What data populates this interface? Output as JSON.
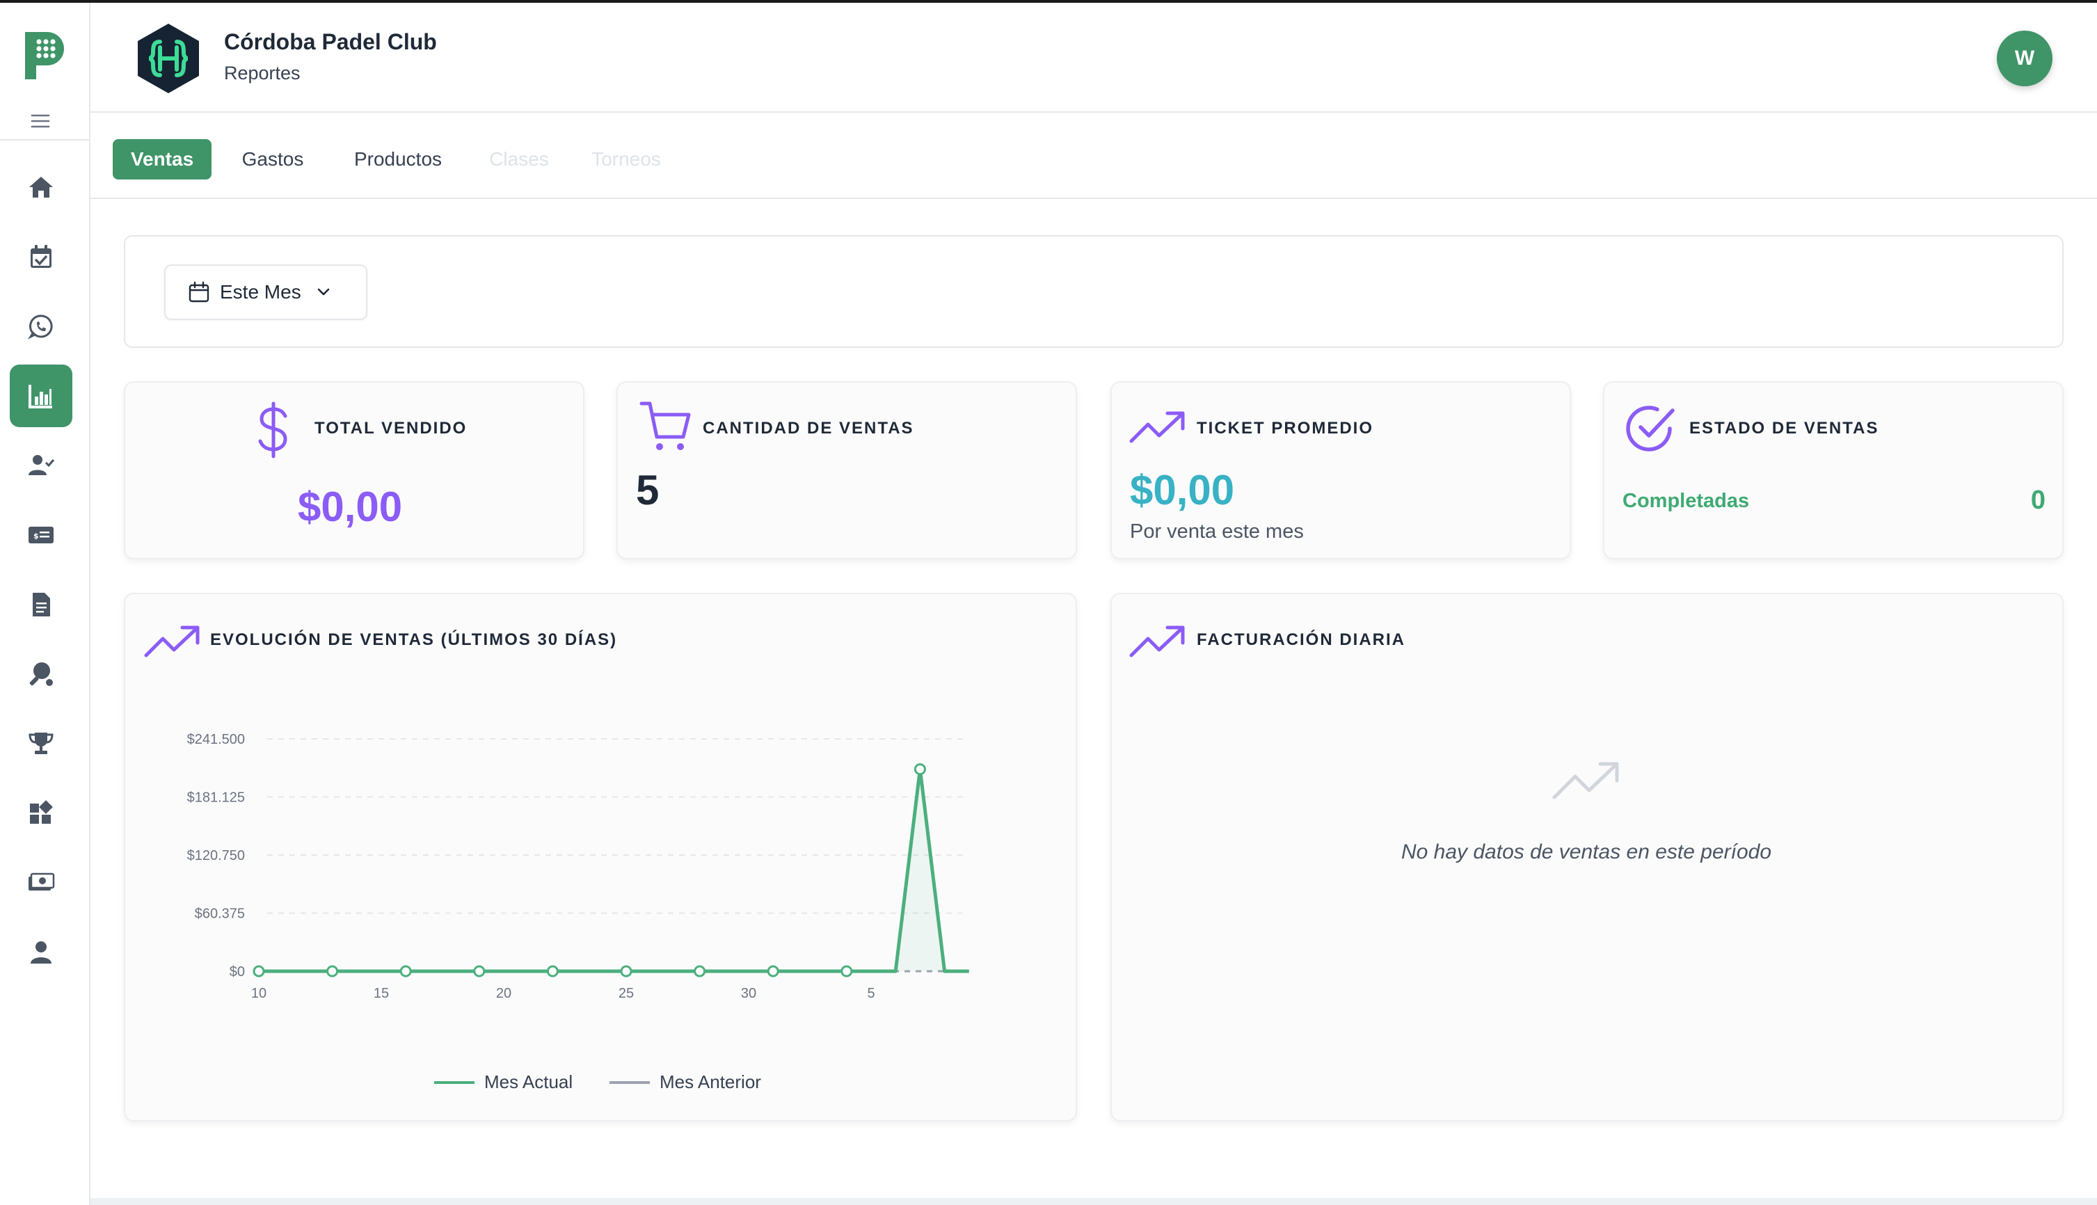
{
  "header": {
    "club_name": "Córdoba Padel Club",
    "section": "Reportes",
    "avatar_initial": "W"
  },
  "sidebar": {
    "items": [
      {
        "name": "home-icon",
        "active": false
      },
      {
        "name": "calendar-check-icon",
        "active": false
      },
      {
        "name": "whatsapp-icon",
        "active": false
      },
      {
        "name": "chart-bar-icon",
        "active": true
      },
      {
        "name": "user-check-icon",
        "active": false
      },
      {
        "name": "money-card-icon",
        "active": false
      },
      {
        "name": "document-icon",
        "active": false
      },
      {
        "name": "paddle-icon",
        "active": false
      },
      {
        "name": "trophy-icon",
        "active": false
      },
      {
        "name": "widgets-icon",
        "active": false
      },
      {
        "name": "cash-icon",
        "active": false
      },
      {
        "name": "user-icon",
        "active": false
      }
    ]
  },
  "tabs": [
    {
      "label": "Ventas",
      "state": "active"
    },
    {
      "label": "Gastos",
      "state": "normal"
    },
    {
      "label": "Productos",
      "state": "normal"
    },
    {
      "label": "Clases",
      "state": "disabled"
    },
    {
      "label": "Torneos",
      "state": "disabled"
    }
  ],
  "filter": {
    "period_label": "Este Mes"
  },
  "cards": {
    "total_vendido": {
      "title": "TOTAL VENDIDO",
      "value": "$0,00"
    },
    "cantidad_ventas": {
      "title": "CANTIDAD DE VENTAS",
      "value": "5"
    },
    "ticket_promedio": {
      "title": "TICKET PROMEDIO",
      "value": "$0,00",
      "subtitle": "Por venta este mes"
    },
    "estado_ventas": {
      "title": "ESTADO DE VENTAS",
      "label": "Completadas",
      "count": "0"
    }
  },
  "evolution_panel": {
    "title": "EVOLUCIÓN DE VENTAS (ÚLTIMOS 30 DÍAS)"
  },
  "daily_panel": {
    "title": "FACTURACIÓN DIARIA",
    "empty_message": "No hay datos de ventas en este período"
  },
  "colors": {
    "primary_green": "#3f9468",
    "accent_purple": "#8b5cf6",
    "accent_teal": "#38b2c4",
    "series_current": "#4caf7d",
    "series_previous": "#9ca3af"
  },
  "chart_data": {
    "type": "line",
    "title": "",
    "xlabel": "",
    "ylabel": "",
    "y_ticks": [
      "$0",
      "$60.375",
      "$120.750",
      "$181.125",
      "$241.500"
    ],
    "y_tick_values": [
      0,
      60375,
      120750,
      181125,
      241500
    ],
    "ylim": [
      0,
      241500
    ],
    "x_tick_labels": [
      {
        "label": "10",
        "index": 0
      },
      {
        "label": "15",
        "index": 5
      },
      {
        "label": "20",
        "index": 10
      },
      {
        "label": "25",
        "index": 15
      },
      {
        "label": "30",
        "index": 20
      },
      {
        "label": "5",
        "index": 25
      }
    ],
    "x_count": 30,
    "grid": true,
    "legend_position": "bottom-center",
    "series": [
      {
        "name": "Mes Actual",
        "values": [
          0,
          0,
          0,
          0,
          0,
          0,
          0,
          0,
          0,
          0,
          0,
          0,
          0,
          0,
          0,
          0,
          0,
          0,
          0,
          0,
          0,
          0,
          0,
          0,
          0,
          0,
          0,
          210000,
          0,
          0
        ]
      },
      {
        "name": "Mes Anterior",
        "values": [
          0,
          0,
          0,
          0,
          0,
          0,
          0,
          0,
          0,
          0,
          0,
          0,
          0,
          0,
          0,
          0,
          0,
          0,
          0,
          0,
          0,
          0,
          0,
          0,
          0,
          0,
          0,
          0,
          0,
          0
        ]
      }
    ],
    "marker_indices": [
      0,
      3,
      6,
      9,
      12,
      15,
      18,
      21,
      24,
      27
    ]
  }
}
